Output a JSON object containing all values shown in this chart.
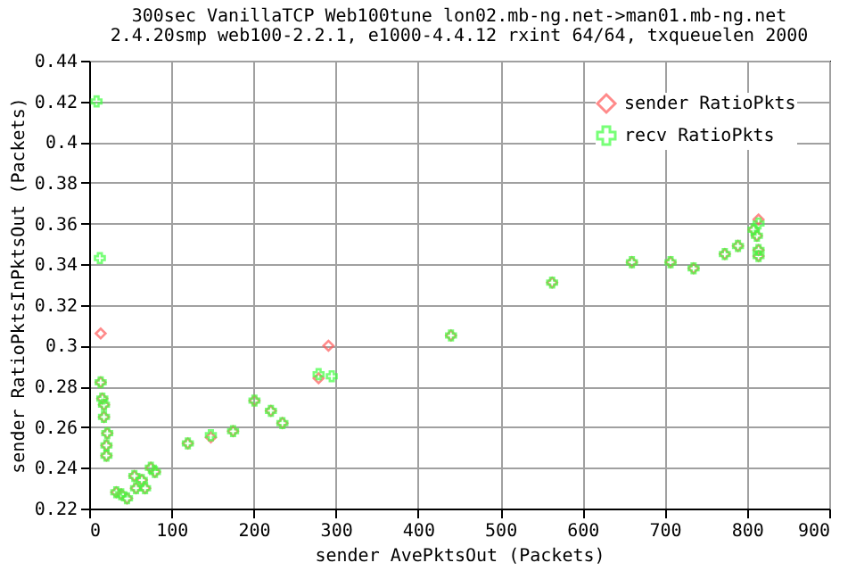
{
  "chart_data": {
    "type": "scatter",
    "title": "300sec VanillaTCP Web100tune lon02.mb-ng.net->man01.mb-ng.net",
    "subtitle": "2.4.20smp web100-2.2.1, e1000-4.4.12 rxint 64/64, txqueuelen 2000",
    "xlabel": "sender AvePktsOut (Packets)",
    "ylabel": "sender RatioPktsInPktsOut (Packets)",
    "xlim": [
      0,
      900
    ],
    "xticks": [
      0,
      100,
      200,
      300,
      400,
      500,
      600,
      700,
      800,
      900
    ],
    "ylim": [
      0.22,
      0.44
    ],
    "yticks": [
      0.22,
      0.24,
      0.26,
      0.28,
      0.3,
      0.32,
      0.34,
      0.36,
      0.38,
      0.4,
      0.42,
      0.44
    ],
    "grid": true,
    "legend": "top right",
    "series": [
      {
        "name": "sender RatioPkts",
        "color": "#ff5a5a",
        "marker": "diamond",
        "x": [
          14,
          14,
          16,
          18,
          18,
          22,
          21,
          21,
          33,
          39,
          46,
          55,
          64,
          57,
          68,
          75,
          80,
          120,
          148,
          175,
          201,
          221,
          235,
          279,
          291,
          440,
          563,
          660,
          707,
          735,
          773,
          789,
          814,
          808,
          812,
          814,
          814
        ],
        "values": [
          0.306,
          0.282,
          0.274,
          0.271,
          0.265,
          0.257,
          0.251,
          0.246,
          0.228,
          0.227,
          0.225,
          0.236,
          0.234,
          0.23,
          0.23,
          0.24,
          0.238,
          0.252,
          0.255,
          0.258,
          0.273,
          0.268,
          0.262,
          0.284,
          0.3,
          0.305,
          0.331,
          0.341,
          0.341,
          0.338,
          0.345,
          0.349,
          0.362,
          0.357,
          0.354,
          0.347,
          0.344
        ]
      },
      {
        "name": "recv RatioPkts",
        "color": "#40ff40",
        "marker": "cross",
        "x": [
          9,
          13,
          14,
          16,
          18,
          18,
          22,
          21,
          21,
          33,
          39,
          46,
          55,
          64,
          57,
          68,
          75,
          80,
          120,
          148,
          175,
          201,
          221,
          235,
          279,
          295,
          440,
          563,
          660,
          707,
          735,
          773,
          789,
          814,
          808,
          812,
          814,
          814
        ],
        "values": [
          0.42,
          0.343,
          0.282,
          0.274,
          0.271,
          0.265,
          0.257,
          0.251,
          0.246,
          0.228,
          0.227,
          0.225,
          0.236,
          0.234,
          0.23,
          0.23,
          0.24,
          0.238,
          0.252,
          0.256,
          0.258,
          0.273,
          0.268,
          0.262,
          0.286,
          0.285,
          0.305,
          0.331,
          0.341,
          0.341,
          0.338,
          0.345,
          0.349,
          0.36,
          0.357,
          0.354,
          0.347,
          0.344
        ]
      }
    ]
  }
}
